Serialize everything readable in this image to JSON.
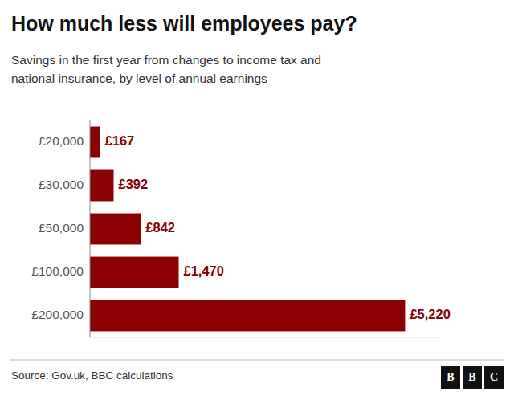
{
  "chart_data": {
    "type": "bar",
    "orientation": "horizontal",
    "title": "How much less will employees pay?",
    "subtitle": "Savings in the first year from changes to income tax and\nnational insurance, by level of annual earnings",
    "categories": [
      "£20,000",
      "£30,000",
      "£50,000",
      "£100,000",
      "£200,000"
    ],
    "values": [
      167,
      392,
      842,
      1470,
      5220
    ],
    "value_labels": [
      "£167",
      "£392",
      "£842",
      "£1,470",
      "£5,220"
    ],
    "data_labels": true,
    "color": "#8B0000",
    "xlim": [
      0,
      5800
    ],
    "tick_labels": "y",
    "grid": false,
    "source": "Source: Gov.uk, BBC calculations",
    "annotations": [
      "B",
      "B",
      "C"
    ]
  }
}
